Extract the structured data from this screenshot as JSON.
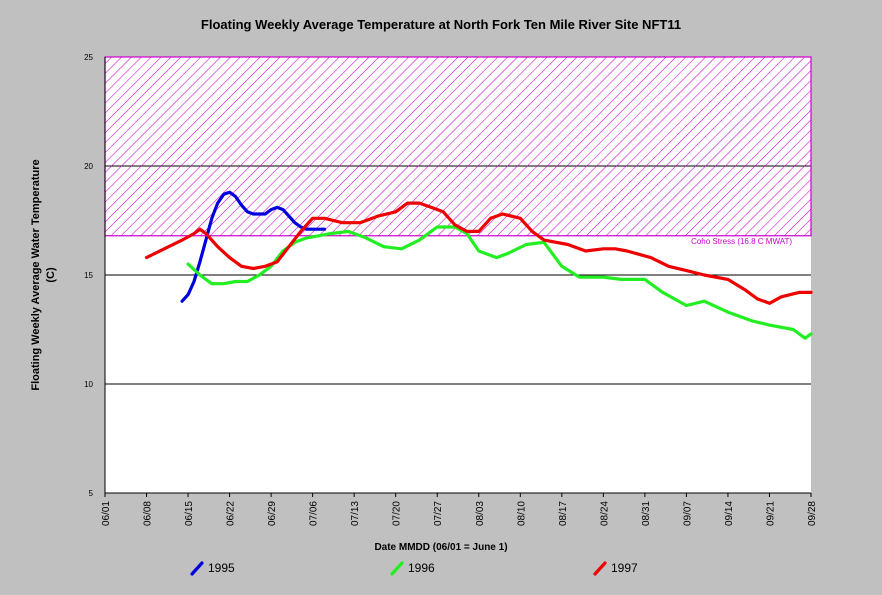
{
  "chart_data": {
    "type": "line",
    "title": "Floating Weekly Average Temperature at North Fork Ten Mile River Site NFT11",
    "xlabel": "Date MMDD (06/01 = June 1)",
    "ylabel": "Floating Weekly Average Water Temperature (C)",
    "x_ticks": [
      "06/01",
      "06/08",
      "06/15",
      "06/22",
      "06/29",
      "07/06",
      "07/13",
      "07/20",
      "07/27",
      "08/03",
      "08/10",
      "08/17",
      "08/24",
      "08/31",
      "09/07",
      "09/14",
      "09/21",
      "09/28"
    ],
    "xlim": [
      "06/01",
      "09/28"
    ],
    "y_ticks": [
      5,
      10,
      15,
      20,
      25
    ],
    "ylim": [
      5,
      25
    ],
    "threshold": {
      "label": "Coho Stress (16.8 C MWAT)",
      "value": 16.8,
      "band_top": 25,
      "color": "#cc00cc"
    },
    "series": [
      {
        "name": "1995",
        "color": "#0000dd",
        "x": [
          "06/14",
          "06/15",
          "06/16",
          "06/17",
          "06/18",
          "06/19",
          "06/20",
          "06/21",
          "06/22",
          "06/23",
          "06/24",
          "06/25",
          "06/26",
          "06/27",
          "06/28",
          "06/29",
          "06/30",
          "07/01",
          "07/02",
          "07/03",
          "07/04",
          "07/05",
          "07/06",
          "07/07",
          "07/08"
        ],
        "values": [
          13.8,
          14.1,
          14.7,
          15.6,
          16.6,
          17.6,
          18.3,
          18.7,
          18.8,
          18.6,
          18.2,
          17.9,
          17.8,
          17.8,
          17.8,
          18.0,
          18.1,
          18.0,
          17.7,
          17.4,
          17.2,
          17.1,
          17.1,
          17.1,
          17.1
        ]
      },
      {
        "name": "1996",
        "color": "#22ee22",
        "x": [
          "06/15",
          "06/17",
          "06/19",
          "06/21",
          "06/23",
          "06/25",
          "06/27",
          "06/29",
          "07/01",
          "07/03",
          "07/05",
          "07/07",
          "07/09",
          "07/12",
          "07/15",
          "07/18",
          "07/21",
          "07/24",
          "07/27",
          "07/30",
          "08/01",
          "08/03",
          "08/06",
          "08/08",
          "08/11",
          "08/14",
          "08/17",
          "08/20",
          "08/24",
          "08/27",
          "08/31",
          "09/03",
          "09/07",
          "09/10",
          "09/14",
          "09/18",
          "09/21",
          "09/25",
          "09/27",
          "09/28"
        ],
        "values": [
          15.5,
          15.0,
          14.6,
          14.6,
          14.7,
          14.7,
          15.0,
          15.4,
          16.1,
          16.5,
          16.7,
          16.8,
          16.9,
          17.0,
          16.7,
          16.3,
          16.2,
          16.6,
          17.2,
          17.2,
          16.9,
          16.1,
          15.8,
          16.0,
          16.4,
          16.5,
          15.4,
          14.9,
          14.9,
          14.8,
          14.8,
          14.2,
          13.6,
          13.8,
          13.3,
          12.9,
          12.7,
          12.5,
          12.1,
          12.3
        ]
      },
      {
        "name": "1997",
        "color": "#ee0000",
        "x": [
          "06/08",
          "06/11",
          "06/14",
          "06/16",
          "06/17",
          "06/18",
          "06/20",
          "06/22",
          "06/24",
          "06/26",
          "06/28",
          "06/30",
          "07/02",
          "07/04",
          "07/06",
          "07/08",
          "07/11",
          "07/14",
          "07/17",
          "07/20",
          "07/22",
          "07/24",
          "07/26",
          "07/28",
          "07/30",
          "08/01",
          "08/03",
          "08/05",
          "08/07",
          "08/10",
          "08/12",
          "08/14",
          "08/18",
          "08/21",
          "08/24",
          "08/26",
          "08/28",
          "09/01",
          "09/04",
          "09/07",
          "09/10",
          "09/14",
          "09/17",
          "09/19",
          "09/21",
          "09/23",
          "09/26",
          "09/28"
        ],
        "values": [
          15.8,
          16.2,
          16.6,
          16.9,
          17.1,
          16.9,
          16.3,
          15.8,
          15.4,
          15.3,
          15.4,
          15.6,
          16.3,
          17.0,
          17.6,
          17.6,
          17.4,
          17.4,
          17.7,
          17.9,
          18.3,
          18.3,
          18.1,
          17.9,
          17.3,
          17.0,
          17.0,
          17.6,
          17.8,
          17.6,
          17.0,
          16.6,
          16.4,
          16.1,
          16.2,
          16.2,
          16.1,
          15.8,
          15.4,
          15.2,
          15.0,
          14.8,
          14.3,
          13.9,
          13.7,
          14.0,
          14.2,
          14.2
        ]
      }
    ]
  }
}
